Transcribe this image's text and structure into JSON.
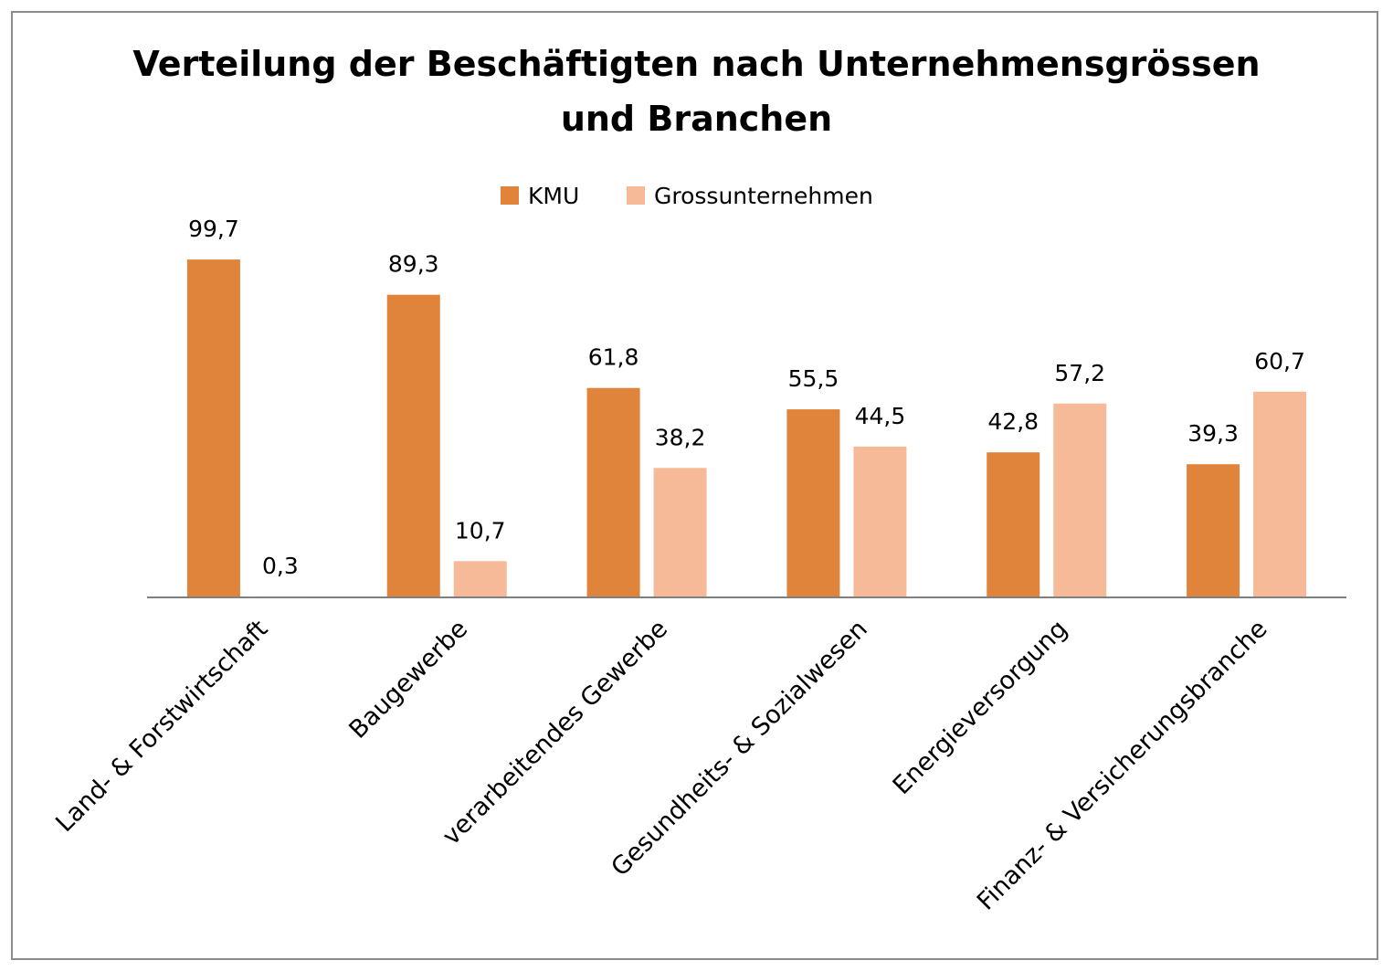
{
  "chart_data": {
    "type": "bar",
    "title_line1": "Verteilung der Beschäftigten nach Unternehmensgrössen",
    "title_line2": "und Branchen",
    "categories": [
      "Land- & Forstwirtschaft",
      "Baugewerbe",
      "verarbeitendes Gewerbe",
      "Gesundheits- & Sozialwesen",
      "Energieversorgung",
      "Finanz- & Versicherungsbranche"
    ],
    "series": [
      {
        "name": "KMU",
        "color": "#E0843C",
        "values": [
          99.7,
          89.3,
          61.8,
          55.5,
          42.8,
          39.3
        ],
        "labels": [
          "99,7",
          "89,3",
          "61,8",
          "55,5",
          "42,8",
          "39,3"
        ]
      },
      {
        "name": "Grossunternehmen",
        "color": "#F7BA98",
        "values": [
          0.3,
          10.7,
          38.2,
          44.5,
          57.2,
          60.7
        ],
        "labels": [
          "0,3",
          "10,7",
          "38,2",
          "44,5",
          "57,2",
          "60,7"
        ]
      }
    ],
    "ylim": [
      0,
      100
    ],
    "legend_position": "top",
    "grid": false
  }
}
